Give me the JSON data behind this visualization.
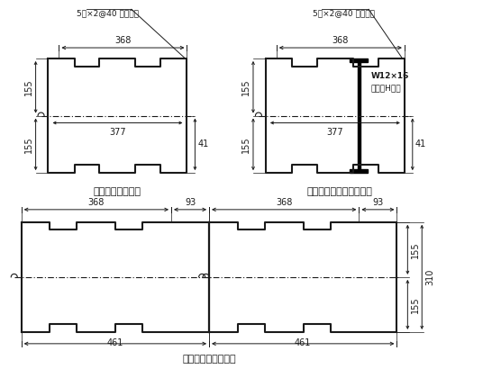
{
  "title1": "压型钢板横截面图",
  "title2": "加强型压型钢板横截面图",
  "title3": "压型钢板拼装示意图",
  "label_top1": "5宽×2@40 深加劲肋",
  "label_top2": "5宽×2@40 深加劲肋",
  "label_368": "368",
  "label_377": "377",
  "label_41": "41",
  "label_155a": "155",
  "label_155b": "155",
  "label_93": "93",
  "label_461": "461",
  "label_155c": "155",
  "label_155d": "155",
  "label_310": "310",
  "label_w12": "W12×16",
  "label_hbeam": "宽翼缘H型钢",
  "bg_color": "#ffffff",
  "line_color": "#1a1a1a",
  "text_color": "#1a1a1a"
}
